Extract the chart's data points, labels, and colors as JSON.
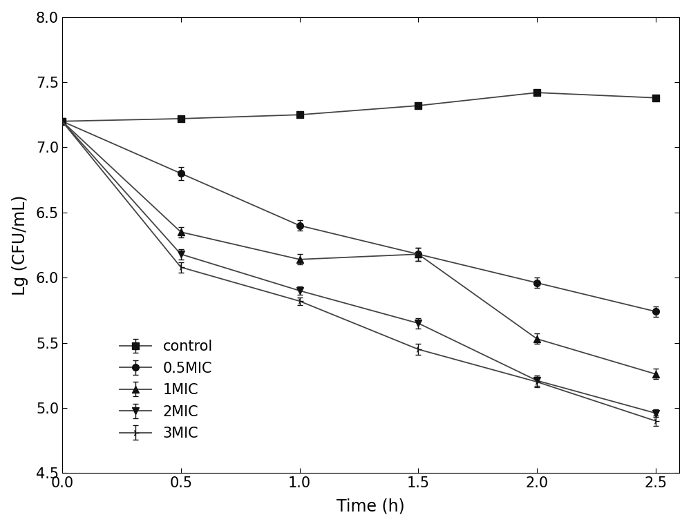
{
  "x": [
    0.0,
    0.5,
    1.0,
    1.5,
    2.0,
    2.5
  ],
  "series": [
    {
      "label": "control",
      "y": [
        7.2,
        7.22,
        7.25,
        7.32,
        7.42,
        7.38
      ],
      "yerr": [
        0.02,
        0.02,
        0.02,
        0.02,
        0.02,
        0.02
      ],
      "marker": "s"
    },
    {
      "label": "0.5MIC",
      "y": [
        7.2,
        6.8,
        6.4,
        6.18,
        5.96,
        5.74
      ],
      "yerr": [
        0.02,
        0.05,
        0.04,
        0.05,
        0.04,
        0.04
      ],
      "marker": "o"
    },
    {
      "label": "1MIC",
      "y": [
        7.2,
        6.35,
        6.14,
        6.18,
        5.53,
        5.26
      ],
      "yerr": [
        0.02,
        0.04,
        0.04,
        0.05,
        0.04,
        0.04
      ],
      "marker": "^"
    },
    {
      "label": "2MIC",
      "y": [
        7.2,
        6.18,
        5.9,
        5.65,
        5.21,
        4.96
      ],
      "yerr": [
        0.02,
        0.04,
        0.03,
        0.04,
        0.04,
        0.03
      ],
      "marker": "v"
    },
    {
      "label": "3MIC",
      "y": [
        7.2,
        6.08,
        5.82,
        5.45,
        5.2,
        4.9
      ],
      "yerr": [
        0.02,
        0.04,
        0.03,
        0.04,
        0.04,
        0.04
      ],
      "marker": "4"
    }
  ],
  "xlabel": "Time (h)",
  "ylabel": "Lg (CFU/mL)",
  "xlim": [
    0.0,
    2.6
  ],
  "ylim": [
    4.5,
    8.0
  ],
  "xticks": [
    0.0,
    0.5,
    1.0,
    1.5,
    2.0,
    2.5
  ],
  "yticks": [
    4.5,
    5.0,
    5.5,
    6.0,
    6.5,
    7.0,
    7.5,
    8.0
  ],
  "line_color": "#444444",
  "marker_color": "#111111",
  "markersize": 7,
  "linewidth": 1.3,
  "legend_fontsize": 15,
  "axis_fontsize": 17,
  "tick_fontsize": 15,
  "background_color": "#ffffff"
}
